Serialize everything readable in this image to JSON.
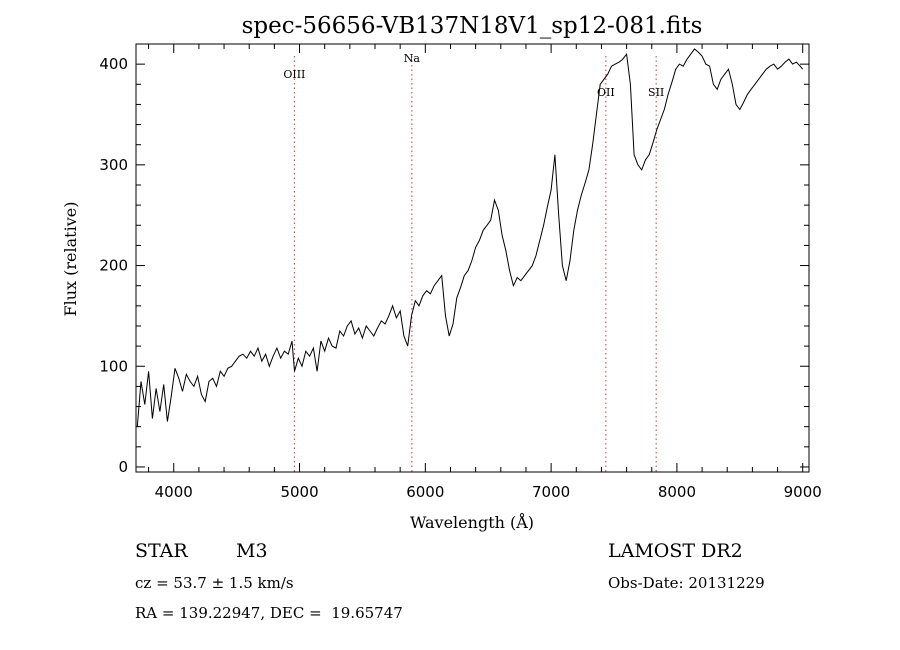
{
  "chart_data": {
    "type": "line",
    "title": "spec-56656-VB137N18V1_sp12-081.fits",
    "xlabel": "Wavelength (Å)",
    "ylabel": "Flux (relative)",
    "xlim": [
      3700,
      9050
    ],
    "ylim": [
      -5,
      420
    ],
    "xticks": [
      4000,
      5000,
      6000,
      7000,
      8000,
      9000
    ],
    "xtick_labels": [
      "4000",
      "5000",
      "6000",
      "7000",
      "8000",
      "9000"
    ],
    "yticks": [
      0,
      100,
      200,
      300,
      400
    ],
    "ytick_labels": [
      "0",
      "100",
      "200",
      "300",
      "400"
    ],
    "lines": [
      {
        "name": "OIII",
        "wavelength": 4959
      },
      {
        "name": "Na",
        "wavelength": 5893
      },
      {
        "name": "OII",
        "wavelength": 7435
      },
      {
        "name": "SII",
        "wavelength": 7835
      }
    ],
    "series": [
      {
        "name": "spectrum",
        "x": [
          3710,
          3740,
          3770,
          3800,
          3830,
          3860,
          3890,
          3920,
          3950,
          3980,
          4010,
          4040,
          4070,
          4100,
          4130,
          4160,
          4190,
          4220,
          4250,
          4280,
          4310,
          4340,
          4370,
          4400,
          4430,
          4460,
          4490,
          4520,
          4550,
          4580,
          4610,
          4640,
          4670,
          4700,
          4730,
          4760,
          4790,
          4820,
          4850,
          4880,
          4910,
          4940,
          4960,
          4990,
          5020,
          5050,
          5080,
          5110,
          5140,
          5170,
          5200,
          5230,
          5260,
          5290,
          5320,
          5350,
          5380,
          5410,
          5440,
          5470,
          5500,
          5530,
          5560,
          5590,
          5620,
          5650,
          5680,
          5710,
          5740,
          5770,
          5800,
          5830,
          5860,
          5890,
          5920,
          5950,
          5980,
          6010,
          6040,
          6070,
          6100,
          6130,
          6160,
          6190,
          6220,
          6250,
          6280,
          6310,
          6340,
          6370,
          6400,
          6430,
          6460,
          6490,
          6520,
          6550,
          6580,
          6610,
          6640,
          6670,
          6700,
          6730,
          6760,
          6790,
          6820,
          6850,
          6880,
          6910,
          6940,
          6970,
          7000,
          7030,
          7060,
          7090,
          7120,
          7150,
          7180,
          7210,
          7240,
          7270,
          7300,
          7330,
          7360,
          7390,
          7420,
          7450,
          7480,
          7510,
          7540,
          7570,
          7600,
          7630,
          7660,
          7690,
          7720,
          7750,
          7780,
          7810,
          7840,
          7870,
          7900,
          7930,
          7960,
          7990,
          8020,
          8050,
          8080,
          8110,
          8140,
          8170,
          8200,
          8230,
          8260,
          8290,
          8320,
          8350,
          8380,
          8410,
          8440,
          8470,
          8500,
          8530,
          8560,
          8590,
          8620,
          8650,
          8680,
          8710,
          8740,
          8770,
          8800,
          8830,
          8860,
          8890,
          8920,
          8950,
          8980,
          9000
        ],
        "y": [
          40,
          85,
          62,
          95,
          48,
          78,
          55,
          82,
          45,
          70,
          98,
          88,
          75,
          92,
          85,
          80,
          90,
          72,
          65,
          85,
          88,
          80,
          95,
          90,
          98,
          100,
          105,
          110,
          112,
          108,
          115,
          110,
          118,
          105,
          112,
          100,
          110,
          118,
          108,
          115,
          112,
          125,
          95,
          108,
          100,
          115,
          110,
          118,
          95,
          125,
          115,
          128,
          120,
          118,
          135,
          130,
          140,
          145,
          132,
          138,
          128,
          140,
          135,
          130,
          138,
          145,
          142,
          150,
          160,
          148,
          155,
          130,
          120,
          150,
          165,
          160,
          170,
          175,
          172,
          180,
          185,
          190,
          150,
          130,
          142,
          168,
          178,
          190,
          195,
          205,
          218,
          225,
          235,
          240,
          245,
          265,
          255,
          230,
          215,
          195,
          180,
          188,
          185,
          190,
          195,
          200,
          210,
          225,
          240,
          258,
          275,
          310,
          250,
          200,
          185,
          205,
          235,
          255,
          270,
          282,
          295,
          320,
          350,
          380,
          385,
          390,
          398,
          400,
          402,
          405,
          410,
          380,
          310,
          300,
          295,
          305,
          310,
          322,
          335,
          345,
          355,
          370,
          382,
          395,
          400,
          398,
          405,
          410,
          415,
          412,
          408,
          400,
          398,
          380,
          375,
          385,
          390,
          395,
          380,
          360,
          355,
          362,
          370,
          375,
          380,
          385,
          390,
          395,
          398,
          400,
          395,
          398,
          402,
          405,
          400,
          402,
          398,
          395
        ]
      }
    ]
  },
  "info": {
    "class_label": "STAR",
    "subclass": "M3",
    "survey": "LAMOST DR2",
    "cz": "cz = 53.7 ± 1.5 km/s",
    "obs_date": "Obs-Date: 20131229",
    "coords": "RA = 139.22947, DEC =  19.65747"
  }
}
